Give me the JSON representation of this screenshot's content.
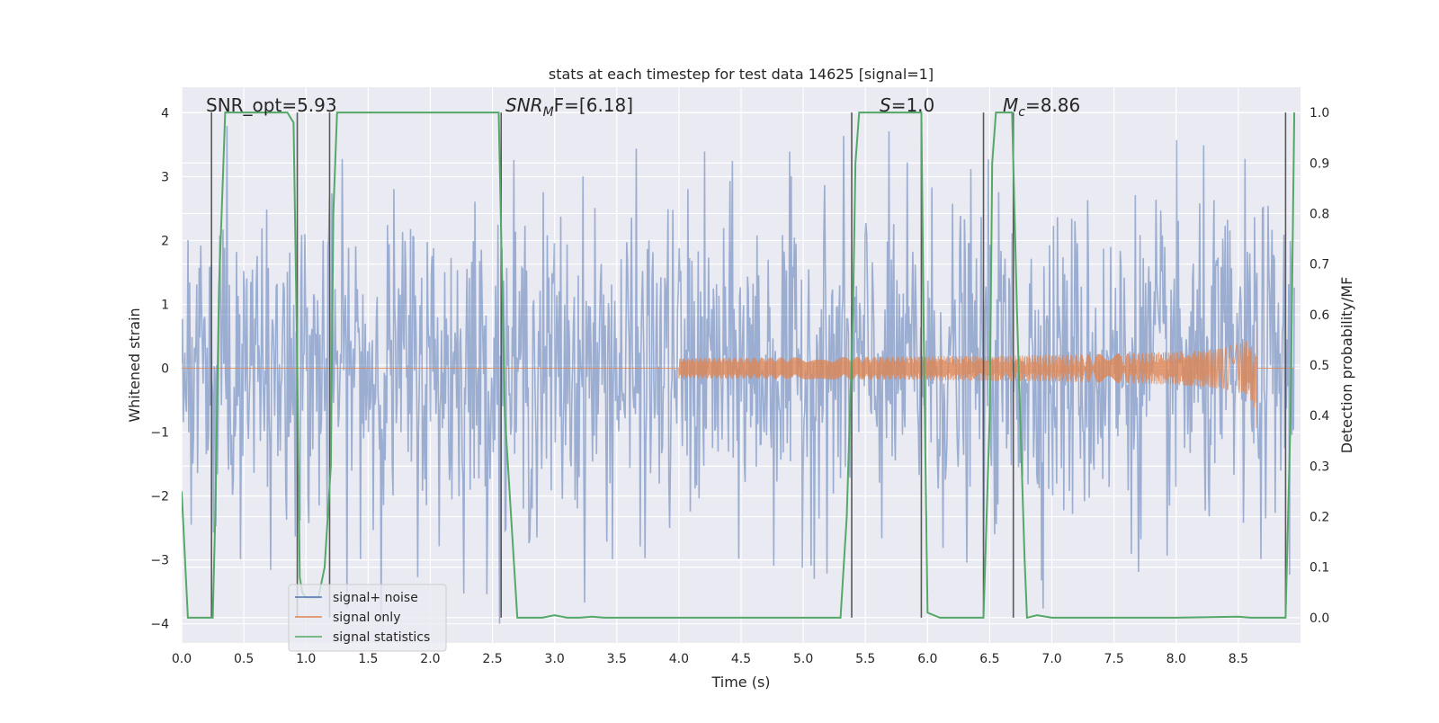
{
  "chart_data": {
    "type": "line",
    "title": "stats at each timestep for test data 14625 [signal=1]",
    "xlabel": "Time (s)",
    "ylabel": "Whitened strain",
    "ylabel_right": "Detection probability/MF",
    "xlim": [
      0.0,
      9.0
    ],
    "ylim": [
      -4.3,
      4.4
    ],
    "ylim_right": [
      -0.05,
      1.05
    ],
    "x_ticks": [
      "0.0",
      "0.5",
      "1.0",
      "1.5",
      "2.0",
      "2.5",
      "3.0",
      "3.5",
      "4.0",
      "4.5",
      "5.0",
      "5.5",
      "6.0",
      "6.5",
      "7.0",
      "7.5",
      "8.0",
      "8.5"
    ],
    "y_ticks": [
      "4",
      "3",
      "2",
      "1",
      "0",
      "−1",
      "−2",
      "−3",
      "−4"
    ],
    "y_ticks_right": [
      "1.0",
      "0.9",
      "0.8",
      "0.7",
      "0.6",
      "0.5",
      "0.4",
      "0.3",
      "0.2",
      "0.1",
      "0.0"
    ],
    "annotations": {
      "snr_opt": "SNR_opt=5.93",
      "snr_mf_base": "SNR",
      "snr_mf_sub": "M",
      "snr_mf_rest": "F=[6.18]",
      "s_base": "S",
      "s_rest": "=1.0",
      "mc_base": "M",
      "mc_sub": "c",
      "mc_rest": "=8.86"
    },
    "legend_position": "lower-left",
    "grid": true,
    "series": [
      {
        "name": "signal+ noise",
        "color": "#4c72b0",
        "description_values": "whitened noisy strain, approx ±2.5 typical, peaks ±4"
      },
      {
        "name": "signal only",
        "color": "#dd8452",
        "chirp_start_time": 4.0,
        "chirp_end_time": 8.65,
        "chirp_peak_amplitude": 0.95
      },
      {
        "name": "signal statistics",
        "color": "#55a868",
        "axis": "right",
        "x": [
          0.0,
          0.05,
          0.25,
          0.27,
          0.3,
          0.35,
          0.4,
          0.85,
          0.9,
          0.93,
          0.95,
          0.97,
          1.0,
          1.1,
          1.15,
          1.2,
          1.22,
          1.25,
          1.3,
          2.55,
          2.6,
          2.7,
          2.8,
          2.9,
          3.0,
          3.1,
          3.2,
          3.3,
          3.4,
          3.6,
          4.0,
          4.5,
          5.3,
          5.35,
          5.4,
          5.42,
          5.45,
          5.5,
          5.95,
          5.97,
          6.0,
          6.1,
          6.2,
          6.4,
          6.45,
          6.5,
          6.52,
          6.55,
          6.6,
          6.68,
          6.72,
          6.78,
          6.8,
          6.88,
          7.0,
          8.0,
          8.5,
          8.6,
          8.88,
          8.92,
          8.95
        ],
        "y": [
          0.25,
          0.0,
          0.0,
          0.2,
          0.65,
          1.0,
          1.0,
          1.0,
          0.98,
          0.5,
          0.08,
          0.05,
          0.04,
          0.04,
          0.1,
          0.3,
          0.8,
          1.0,
          1.0,
          1.0,
          0.4,
          0.0,
          0.0,
          0.0,
          0.005,
          0.0,
          0.0,
          0.002,
          0.0,
          0.0,
          0.0,
          0.0,
          0.0,
          0.2,
          0.6,
          0.9,
          1.0,
          1.0,
          1.0,
          0.55,
          0.01,
          0.0,
          0.0,
          0.0,
          0.0,
          0.4,
          0.9,
          1.0,
          1.0,
          1.0,
          0.6,
          0.12,
          0.0,
          0.005,
          0.0,
          0.0,
          0.002,
          0.0,
          0.0,
          0.4,
          1.0
        ]
      }
    ],
    "vertical_lines_x": [
      0.24,
      0.93,
      1.19,
      2.57,
      5.39,
      5.95,
      6.45,
      6.69,
      8.88
    ]
  },
  "legend": {
    "items": [
      {
        "label": "signal+ noise",
        "color": "#4c72b0"
      },
      {
        "label": "signal only",
        "color": "#dd8452"
      },
      {
        "label": "signal statistics",
        "color": "#55a868"
      }
    ]
  },
  "colors": {
    "axes_bg": "#eaeaf2",
    "grid": "#ffffff",
    "vline": "#595959"
  }
}
